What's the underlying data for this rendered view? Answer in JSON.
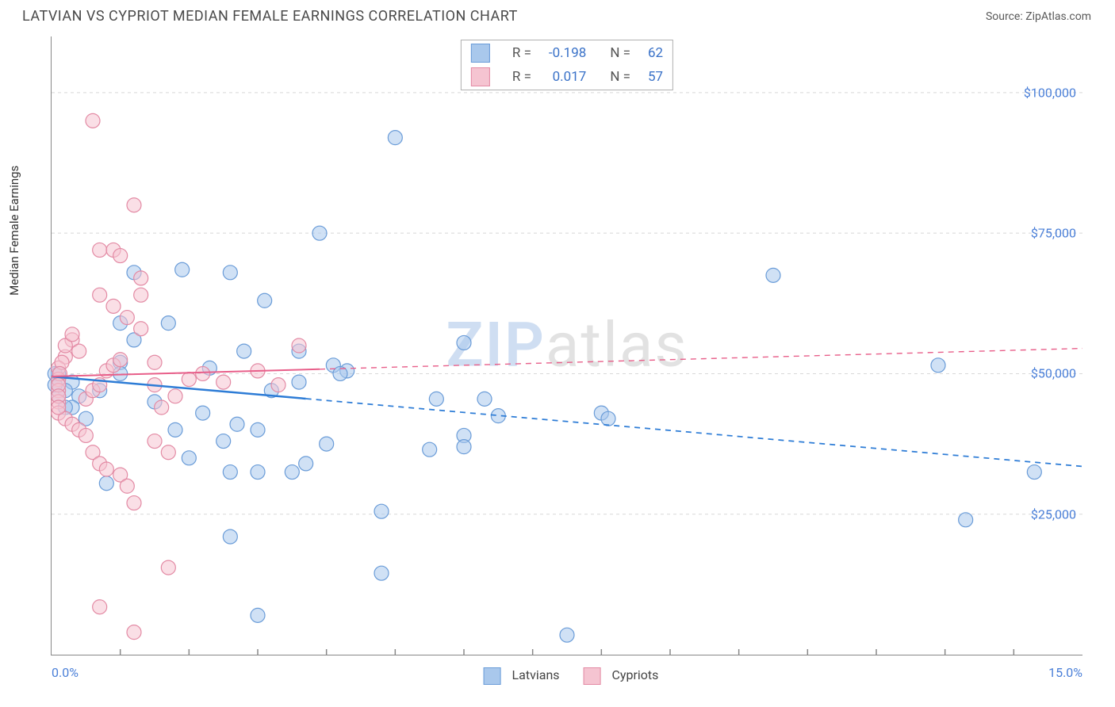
{
  "title": "LATVIAN VS CYPRIOT MEDIAN FEMALE EARNINGS CORRELATION CHART",
  "source": "Source: ZipAtlas.com",
  "ylabel": "Median Female Earnings",
  "watermark": {
    "part1": "ZIP",
    "part2": "atlas"
  },
  "chart": {
    "type": "scatter",
    "background_color": "#ffffff",
    "grid_color": "#d8d8d8",
    "axis_color": "#888888",
    "xlim": [
      0,
      15
    ],
    "ylim": [
      0,
      110000
    ],
    "x_ticks": [
      0,
      15
    ],
    "x_tick_labels": [
      "0.0%",
      "15.0%"
    ],
    "x_minor_ticks": [
      1,
      2,
      3,
      4,
      5,
      6,
      7,
      8,
      9,
      10,
      11,
      12,
      13,
      14
    ],
    "y_ticks": [
      25000,
      50000,
      75000,
      100000
    ],
    "y_tick_labels": [
      "$25,000",
      "$50,000",
      "$75,000",
      "$100,000"
    ],
    "y_tick_color": "#4a7fd8",
    "x_tick_color": "#4a7fd8",
    "marker_radius": 9,
    "marker_opacity": 0.55,
    "series": [
      {
        "name": "Latvians",
        "color_fill": "#a9c8ec",
        "color_stroke": "#6a9cd8",
        "R": "-0.198",
        "N": "62",
        "trend": {
          "color": "#2d7cd6",
          "width": 2.5,
          "y_at_xmin": 49500,
          "y_at_xmax": 33500
        },
        "trend_solid_until_x": 3.7,
        "points": [
          [
            5.0,
            92000
          ],
          [
            3.9,
            75000
          ],
          [
            1.9,
            68500
          ],
          [
            2.6,
            68000
          ],
          [
            1.2,
            68000
          ],
          [
            3.1,
            63000
          ],
          [
            1.0,
            59000
          ],
          [
            1.7,
            59000
          ],
          [
            1.2,
            56000
          ],
          [
            2.8,
            54000
          ],
          [
            6.0,
            55500
          ],
          [
            1.0,
            52000
          ],
          [
            3.6,
            54000
          ],
          [
            4.1,
            51500
          ],
          [
            2.3,
            51000
          ],
          [
            1.0,
            50000
          ],
          [
            0.3,
            48500
          ],
          [
            0.2,
            47000
          ],
          [
            0.4,
            46000
          ],
          [
            0.3,
            44000
          ],
          [
            0.1,
            50000
          ],
          [
            0.1,
            48000
          ],
          [
            0.1,
            46000
          ],
          [
            5.6,
            45500
          ],
          [
            4.3,
            50500
          ],
          [
            0.2,
            44000
          ],
          [
            0.5,
            42000
          ],
          [
            3.2,
            47000
          ],
          [
            3.6,
            48500
          ],
          [
            4.2,
            50000
          ],
          [
            1.5,
            45000
          ],
          [
            0.7,
            47000
          ],
          [
            2.7,
            41000
          ],
          [
            1.8,
            40000
          ],
          [
            0.8,
            30500
          ],
          [
            2.0,
            35000
          ],
          [
            2.5,
            38000
          ],
          [
            2.2,
            43000
          ],
          [
            3.0,
            40000
          ],
          [
            3.0,
            32500
          ],
          [
            2.6,
            32500
          ],
          [
            3.5,
            32500
          ],
          [
            3.7,
            34000
          ],
          [
            4.0,
            37500
          ],
          [
            4.8,
            25500
          ],
          [
            5.5,
            36500
          ],
          [
            6.0,
            39000
          ],
          [
            6.0,
            37000
          ],
          [
            6.5,
            42500
          ],
          [
            6.3,
            45500
          ],
          [
            8.0,
            43000
          ],
          [
            8.1,
            42000
          ],
          [
            10.5,
            67500
          ],
          [
            12.9,
            51500
          ],
          [
            14.3,
            32500
          ],
          [
            13.3,
            24000
          ],
          [
            7.5,
            3500
          ],
          [
            4.8,
            14500
          ],
          [
            3.0,
            7000
          ],
          [
            2.6,
            21000
          ],
          [
            0.05,
            50000
          ],
          [
            0.05,
            48000
          ]
        ]
      },
      {
        "name": "Cypriots",
        "color_fill": "#f5c4d1",
        "color_stroke": "#e38aa4",
        "R": "0.017",
        "N": "57",
        "trend": {
          "color": "#e85f8a",
          "width": 2,
          "y_at_xmin": 49500,
          "y_at_xmax": 54500
        },
        "trend_solid_until_x": 3.9,
        "points": [
          [
            0.6,
            95000
          ],
          [
            1.2,
            80000
          ],
          [
            0.7,
            72000
          ],
          [
            0.9,
            72000
          ],
          [
            1.0,
            71000
          ],
          [
            1.3,
            67000
          ],
          [
            1.3,
            64000
          ],
          [
            0.7,
            64000
          ],
          [
            0.9,
            62000
          ],
          [
            1.1,
            60000
          ],
          [
            1.3,
            58000
          ],
          [
            0.3,
            56000
          ],
          [
            0.4,
            54000
          ],
          [
            0.2,
            53000
          ],
          [
            0.1,
            51000
          ],
          [
            0.1,
            49000
          ],
          [
            0.1,
            47000
          ],
          [
            0.1,
            45000
          ],
          [
            0.1,
            43000
          ],
          [
            0.2,
            42000
          ],
          [
            0.3,
            41000
          ],
          [
            0.4,
            40000
          ],
          [
            0.5,
            45500
          ],
          [
            0.6,
            47000
          ],
          [
            0.7,
            48000
          ],
          [
            0.8,
            50500
          ],
          [
            0.9,
            51500
          ],
          [
            1.0,
            52500
          ],
          [
            1.5,
            52000
          ],
          [
            1.5,
            48000
          ],
          [
            1.6,
            44000
          ],
          [
            1.8,
            46000
          ],
          [
            2.0,
            49000
          ],
          [
            2.2,
            50000
          ],
          [
            2.5,
            48500
          ],
          [
            3.6,
            55000
          ],
          [
            3.0,
            50500
          ],
          [
            3.3,
            48000
          ],
          [
            0.5,
            39000
          ],
          [
            0.6,
            36000
          ],
          [
            0.7,
            34000
          ],
          [
            0.8,
            33000
          ],
          [
            1.0,
            32000
          ],
          [
            1.1,
            30000
          ],
          [
            1.5,
            38000
          ],
          [
            1.7,
            36000
          ],
          [
            1.2,
            27000
          ],
          [
            1.7,
            15500
          ],
          [
            0.7,
            8500
          ],
          [
            1.2,
            4000
          ],
          [
            0.2,
            55000
          ],
          [
            0.3,
            57000
          ],
          [
            0.15,
            52000
          ],
          [
            0.12,
            50000
          ],
          [
            0.1,
            48000
          ],
          [
            0.1,
            46000
          ],
          [
            0.1,
            44000
          ]
        ]
      }
    ],
    "stat_legend_labels": {
      "R": "R =",
      "N": "N ="
    },
    "bottom_legend": [
      {
        "label": "Latvians",
        "fill": "#a9c8ec",
        "stroke": "#6a9cd8"
      },
      {
        "label": "Cypriots",
        "fill": "#f5c4d1",
        "stroke": "#e38aa4"
      }
    ]
  }
}
